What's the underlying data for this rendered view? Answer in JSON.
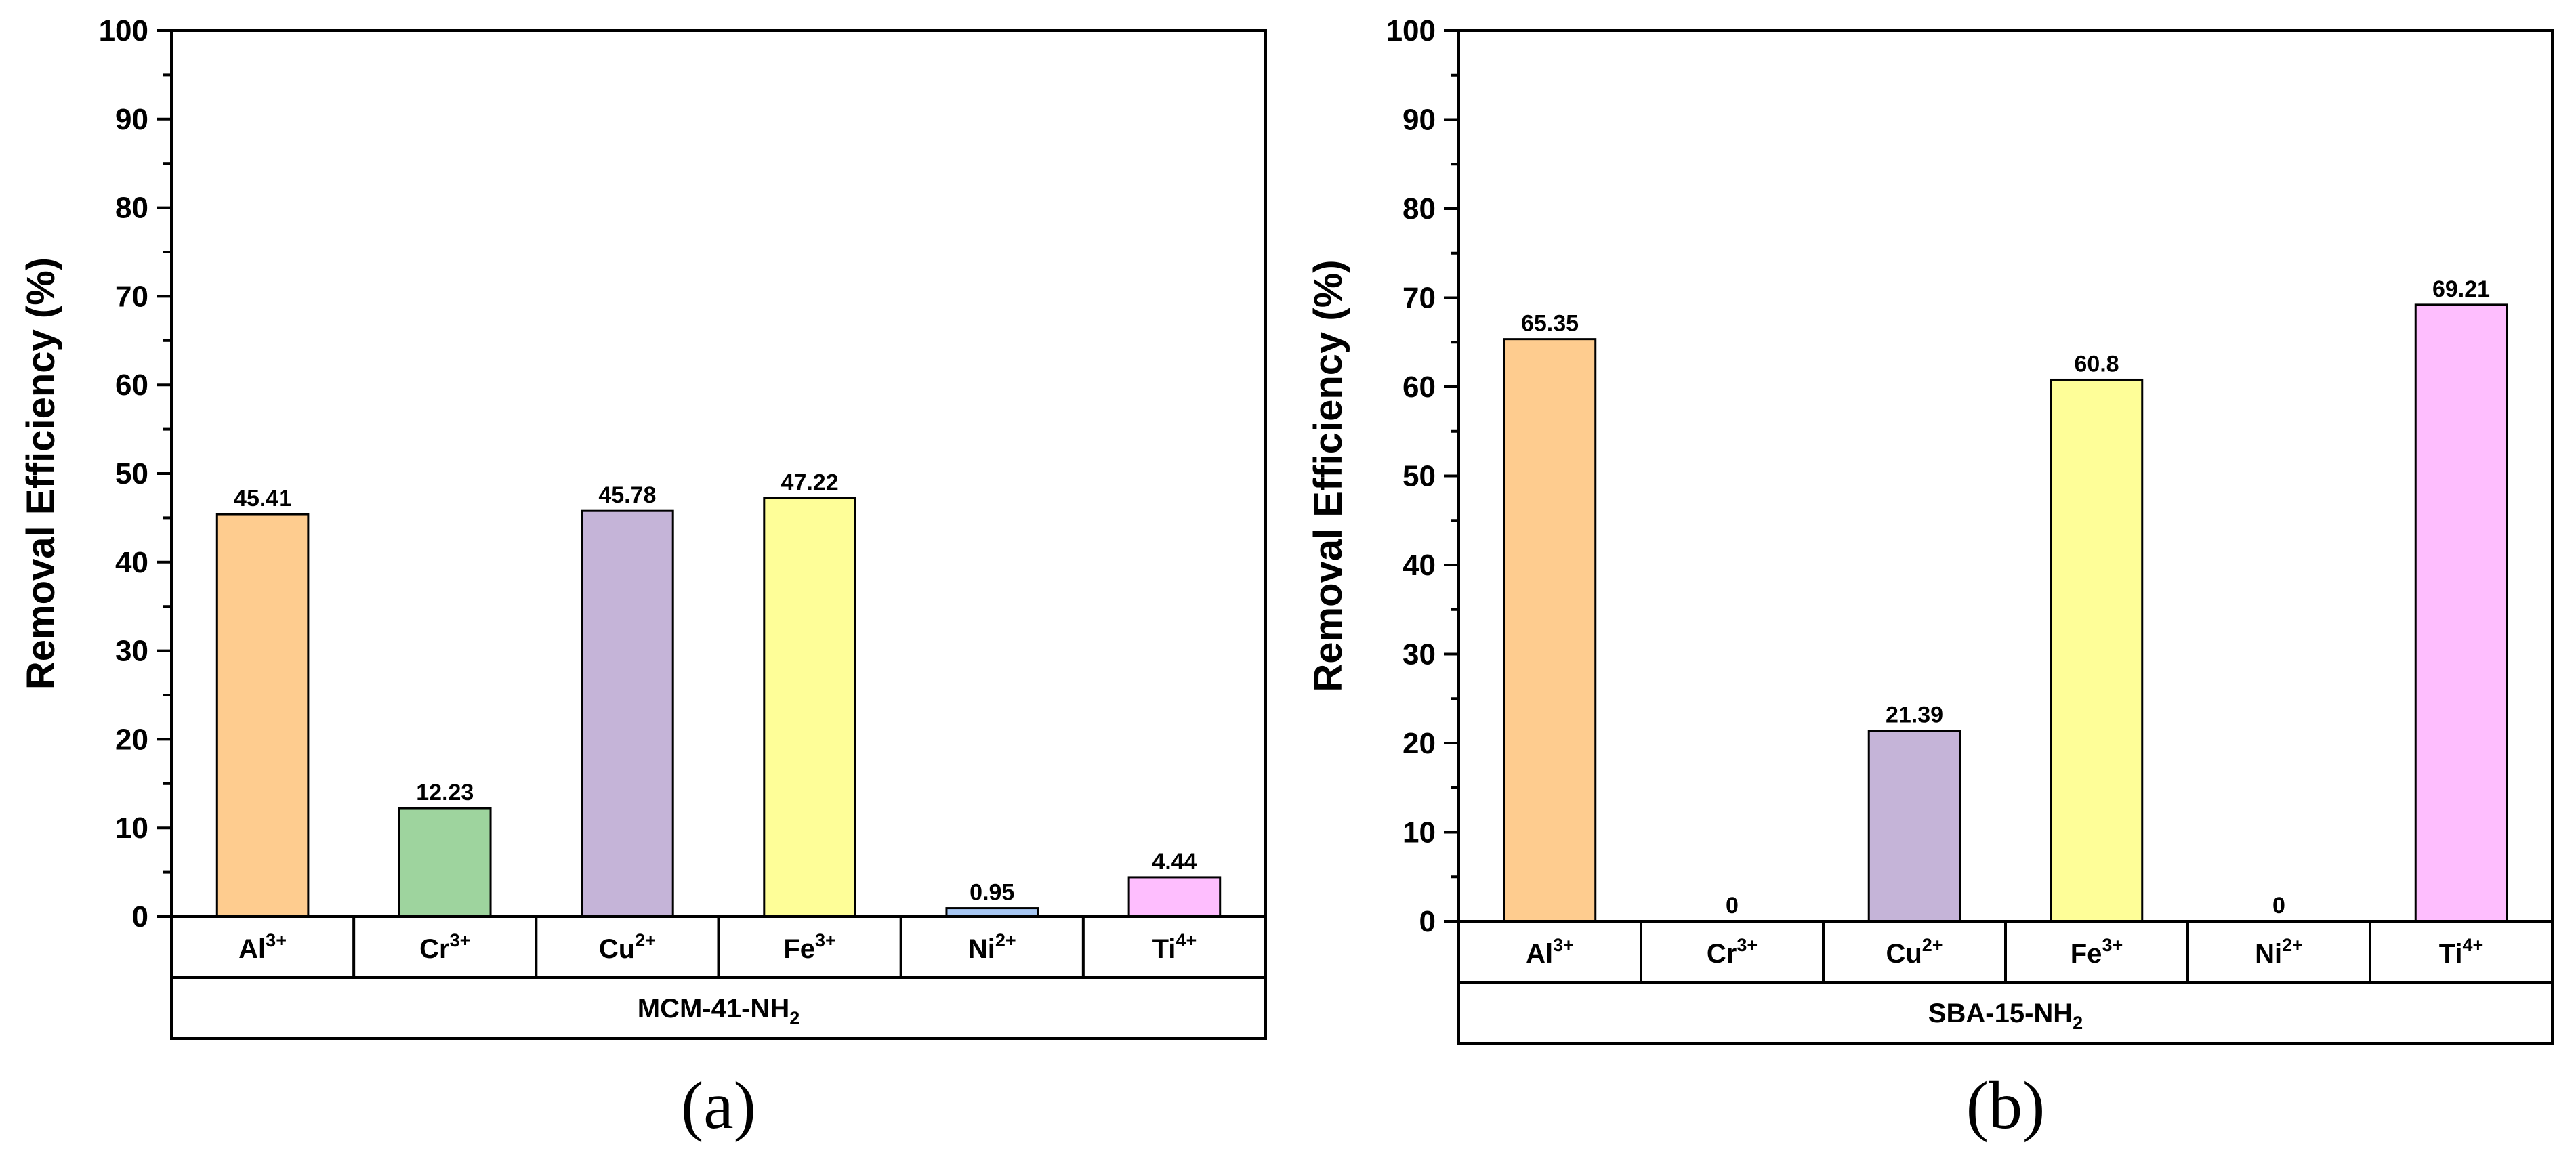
{
  "chart_data": [
    {
      "type": "bar",
      "panel_label": "(a)",
      "group_label": "MCM-41-NH",
      "group_label_sub": "2",
      "ylabel": "Removal Efficiency (%)",
      "ylim": [
        0,
        100
      ],
      "yticks": [
        0,
        10,
        20,
        30,
        40,
        50,
        60,
        70,
        80,
        90,
        100
      ],
      "categories": [
        {
          "base": "Al",
          "sup": "3+"
        },
        {
          "base": "Cr",
          "sup": "3+"
        },
        {
          "base": "Cu",
          "sup": "2+"
        },
        {
          "base": "Fe",
          "sup": "3+"
        },
        {
          "base": "Ni",
          "sup": "2+"
        },
        {
          "base": "Ti",
          "sup": "4+"
        }
      ],
      "values": [
        45.41,
        12.23,
        45.78,
        47.22,
        0.95,
        4.44
      ],
      "value_labels": [
        "45.41",
        "12.23",
        "45.78",
        "47.22",
        "0.95",
        "4.44"
      ],
      "colors": [
        "#FECC8F",
        "#9ED49E",
        "#C5B4D8",
        "#FEFE98",
        "#A7C7F3",
        "#FEBEFE"
      ]
    },
    {
      "type": "bar",
      "panel_label": "(b)",
      "group_label": "SBA-15-NH",
      "group_label_sub": "2",
      "ylabel": "Removal Efficiency (%)",
      "ylim": [
        0,
        100
      ],
      "yticks": [
        0,
        10,
        20,
        30,
        40,
        50,
        60,
        70,
        80,
        90,
        100
      ],
      "categories": [
        {
          "base": "Al",
          "sup": "3+"
        },
        {
          "base": "Cr",
          "sup": "3+"
        },
        {
          "base": "Cu",
          "sup": "2+"
        },
        {
          "base": "Fe",
          "sup": "3+"
        },
        {
          "base": "Ni",
          "sup": "2+"
        },
        {
          "base": "Ti",
          "sup": "4+"
        }
      ],
      "values": [
        65.35,
        0,
        21.39,
        60.8,
        0,
        69.21
      ],
      "value_labels": [
        "65.35",
        "0",
        "21.39",
        "60.8",
        "0",
        "69.21"
      ],
      "colors": [
        "#FECC8F",
        "#9ED49E",
        "#C5B4D8",
        "#FEFE98",
        "#A7C7F3",
        "#FEBEFE"
      ]
    }
  ]
}
